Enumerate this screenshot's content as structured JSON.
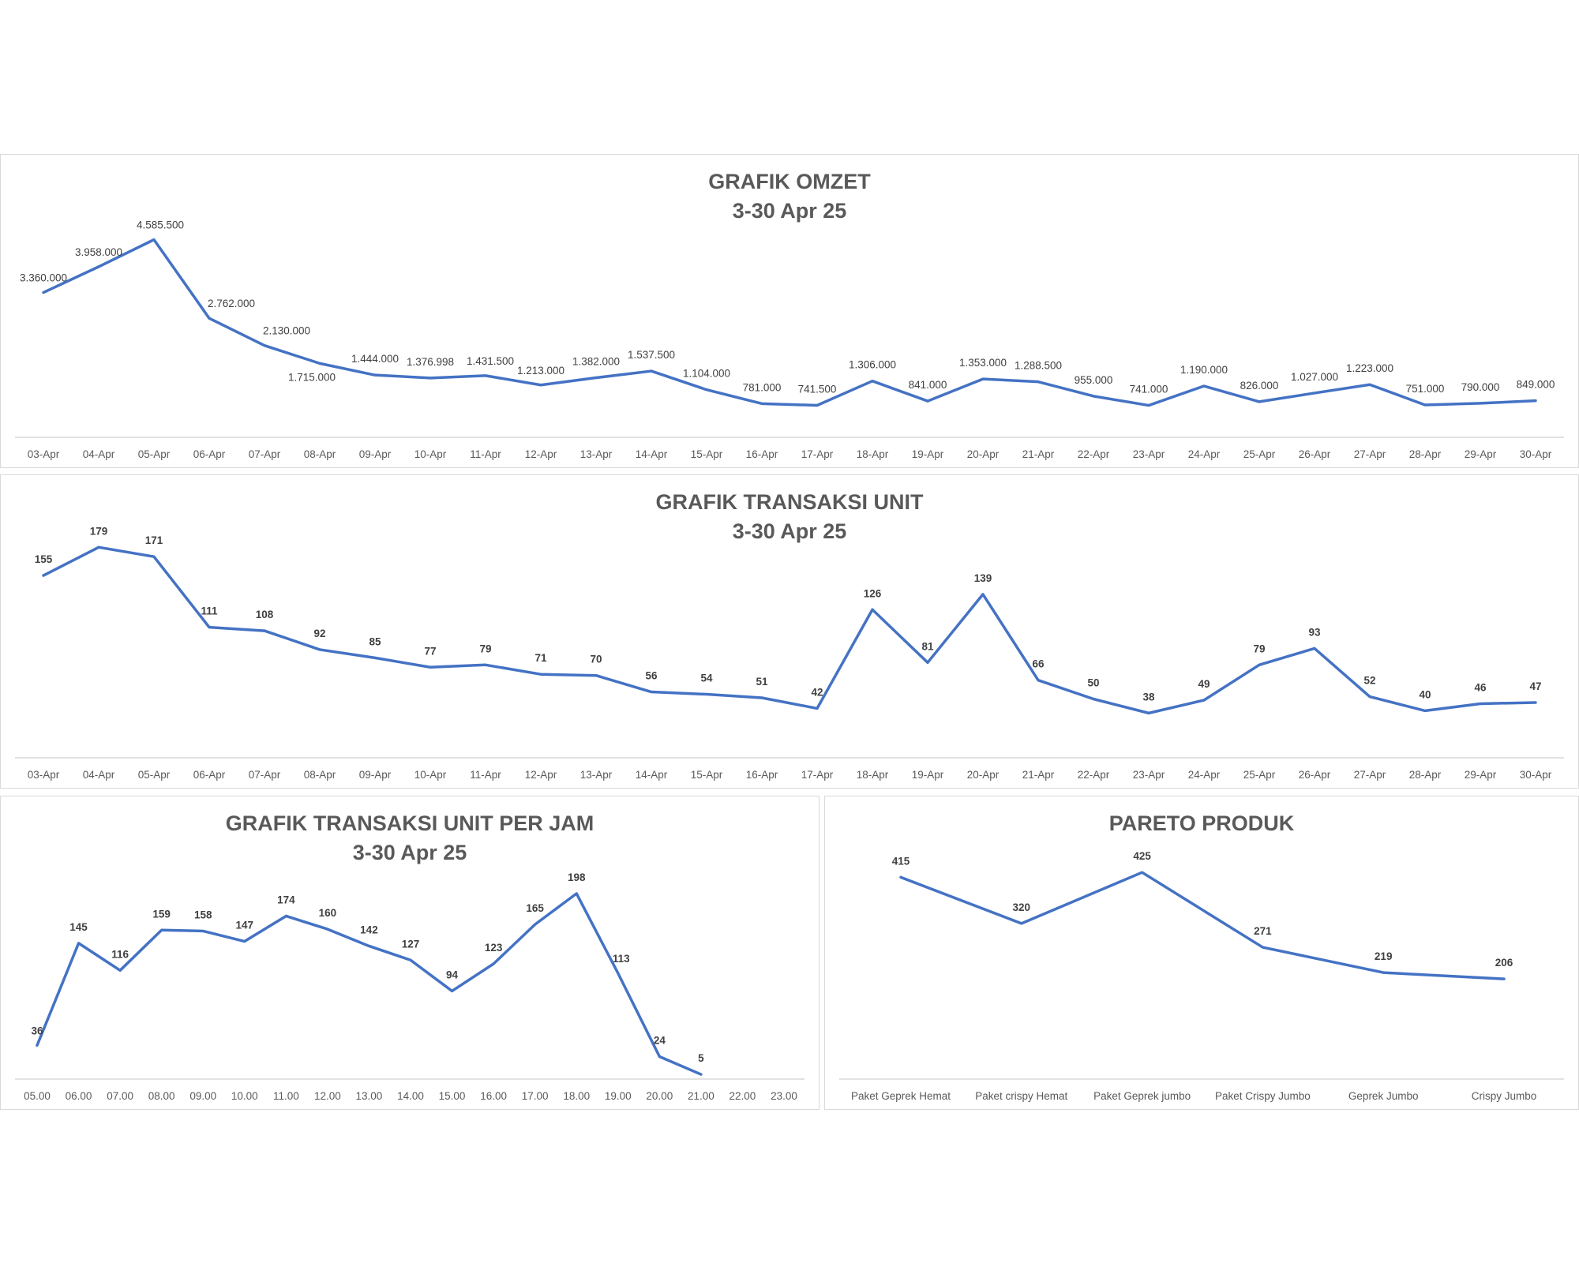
{
  "chart_data": [
    {
      "type": "line",
      "title": "GRAFIK OMZET",
      "subtitle": "3-30 Apr 25",
      "categories": [
        "03-Apr",
        "04-Apr",
        "05-Apr",
        "06-Apr",
        "07-Apr",
        "08-Apr",
        "09-Apr",
        "10-Apr",
        "11-Apr",
        "12-Apr",
        "13-Apr",
        "14-Apr",
        "15-Apr",
        "16-Apr",
        "17-Apr",
        "18-Apr",
        "19-Apr",
        "20-Apr",
        "21-Apr",
        "22-Apr",
        "23-Apr",
        "24-Apr",
        "25-Apr",
        "26-Apr",
        "27-Apr",
        "28-Apr",
        "29-Apr",
        "30-Apr"
      ],
      "values": [
        3360000,
        3958000,
        4585500,
        2762000,
        2130000,
        1715000,
        1444000,
        1376998,
        1431500,
        1213000,
        1382000,
        1537500,
        1104000,
        781000,
        741500,
        1306000,
        841000,
        1353000,
        1288500,
        955000,
        741000,
        1190000,
        826000,
        1027000,
        1223000,
        751000,
        790000,
        849000
      ],
      "data_labels": [
        "3.360.000",
        "3.958.000",
        "4.585.500",
        "2.762.000",
        "2.130.000",
        "1.715.000",
        "1.444.000",
        "1.376.998",
        "1.431.500",
        "1.213.000",
        "1.382.000",
        "1.537.500",
        "1.104.000",
        "781.000",
        "741.500",
        "1.306.000",
        "841.000",
        "1.353.000",
        "1.288.500",
        "955.000",
        "741.000",
        "1.190.000",
        "826.000",
        "1.027.000",
        "1.223.000",
        "751.000",
        "790.000",
        "849.000"
      ],
      "ylim": [
        0,
        5000000
      ],
      "grid": false,
      "line_color": "#4472c4"
    },
    {
      "type": "line",
      "title": "GRAFIK TRANSAKSI UNIT",
      "subtitle": "3-30 Apr 25",
      "categories": [
        "03-Apr",
        "04-Apr",
        "05-Apr",
        "06-Apr",
        "07-Apr",
        "08-Apr",
        "09-Apr",
        "10-Apr",
        "11-Apr",
        "12-Apr",
        "13-Apr",
        "14-Apr",
        "15-Apr",
        "16-Apr",
        "17-Apr",
        "18-Apr",
        "19-Apr",
        "20-Apr",
        "21-Apr",
        "22-Apr",
        "23-Apr",
        "24-Apr",
        "25-Apr",
        "26-Apr",
        "27-Apr",
        "28-Apr",
        "29-Apr",
        "30-Apr"
      ],
      "values": [
        155,
        179,
        171,
        111,
        108,
        92,
        85,
        77,
        79,
        71,
        70,
        56,
        54,
        51,
        42,
        126,
        81,
        139,
        66,
        50,
        38,
        49,
        79,
        93,
        52,
        40,
        46,
        47
      ],
      "data_labels": [
        "155",
        "179",
        "171",
        "111",
        "108",
        "92",
        "85",
        "77",
        "79",
        "71",
        "70",
        "56",
        "54",
        "51",
        "42",
        "126",
        "81",
        "139",
        "66",
        "50",
        "38",
        "49",
        "79",
        "93",
        "52",
        "40",
        "46",
        "47"
      ],
      "ylim": [
        0,
        200
      ],
      "grid": false,
      "line_color": "#4472c4"
    },
    {
      "type": "line",
      "title": "GRAFIK TRANSAKSI UNIT PER JAM",
      "subtitle": "3-30 Apr 25",
      "categories": [
        "05.00",
        "06.00",
        "07.00",
        "08.00",
        "09.00",
        "10.00",
        "11.00",
        "12.00",
        "13.00",
        "14.00",
        "15.00",
        "16.00",
        "17.00",
        "18.00",
        "19.00",
        "20.00",
        "21.00",
        "22.00",
        "23.00"
      ],
      "values": [
        36,
        145,
        116,
        159,
        158,
        147,
        174,
        160,
        142,
        127,
        94,
        123,
        165,
        198,
        113,
        24,
        5,
        null,
        null
      ],
      "data_labels": [
        "36",
        "145",
        "116",
        "159",
        "158",
        "147",
        "174",
        "160",
        "142",
        "127",
        "94",
        "123",
        "165",
        "198",
        "113",
        "24",
        "5",
        "",
        ""
      ],
      "ylim": [
        0,
        230
      ],
      "grid": false,
      "line_color": "#4472c4"
    },
    {
      "type": "line",
      "title": "PARETO PRODUK",
      "subtitle": "",
      "categories": [
        "Paket Geprek Hemat",
        "Paket crispy Hemat",
        "Paket Geprek jumbo",
        "Paket Crispy Jumbo",
        "Geprek Jumbo",
        "Crispy Jumbo"
      ],
      "values": [
        415,
        320,
        425,
        271,
        219,
        206
      ],
      "data_labels": [
        "415",
        "320",
        "425",
        "271",
        "219",
        "206"
      ],
      "ylim": [
        0,
        500
      ],
      "grid": false,
      "line_color": "#4472c4"
    }
  ]
}
